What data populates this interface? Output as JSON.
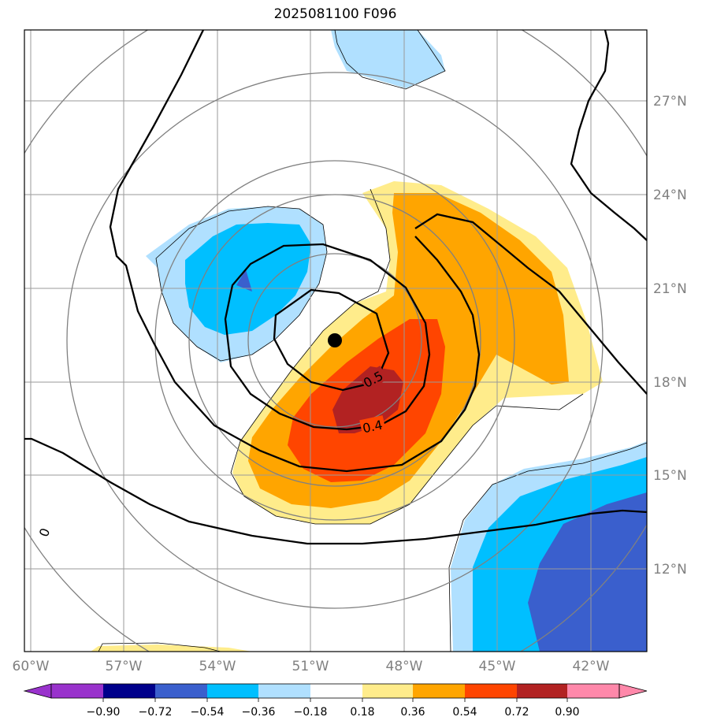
{
  "title": "2025081100 F096",
  "map": {
    "lon_ticks": [
      "60°W",
      "57°W",
      "54°W",
      "51°W",
      "48°W",
      "45°W",
      "42°W"
    ],
    "lat_ticks": [
      "27°N",
      "24°N",
      "21°N",
      "18°N",
      "15°N",
      "12°N"
    ],
    "lon_range": [
      -60,
      -40.25
    ],
    "lat_range": [
      9.7,
      29.7
    ],
    "storm_center": {
      "lon": -50.2,
      "lat": 19.3
    },
    "contour_labels": [
      "0.5",
      "0.4",
      "0"
    ],
    "gridlines": true
  },
  "colorbar": {
    "ticks": [
      "−0.90",
      "−0.72",
      "−0.54",
      "−0.36",
      "−0.18",
      "0.18",
      "0.36",
      "0.54",
      "0.72",
      "0.90"
    ],
    "colors": [
      "#9932cc",
      "#00008b",
      "#3a5fcd",
      "#00bfff",
      "#b0e0ff",
      "#ffffff",
      "#ffec8b",
      "#ffa500",
      "#ff4500",
      "#b22222",
      "#ff88aa"
    ],
    "extend": "both"
  }
}
